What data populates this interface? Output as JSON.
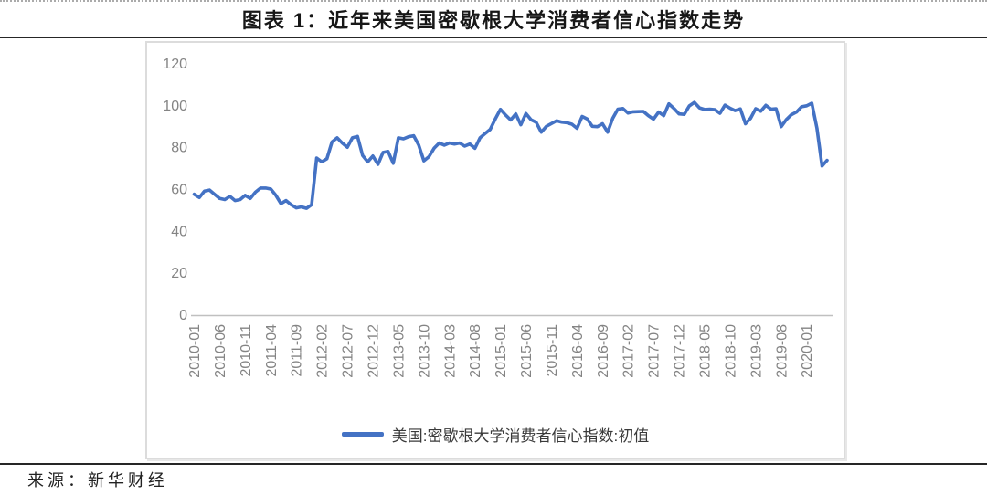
{
  "page": {
    "title": "图表 1：近年来美国密歇根大学消费者信心指数走势",
    "source_label": "来源：新华财经"
  },
  "chart_data": {
    "type": "line",
    "title": "图表 1：近年来美国密歇根大学消费者信心指数走势",
    "xlabel": "",
    "ylabel": "",
    "ylim": [
      0,
      120
    ],
    "yticks": [
      0,
      20,
      40,
      60,
      80,
      100,
      120
    ],
    "x_tick_every": 5,
    "grid": false,
    "legend_position": "bottom",
    "axis_color": "#c0c0c0",
    "label_color": "#848484",
    "x": [
      "2010-01",
      "2010-02",
      "2010-03",
      "2010-04",
      "2010-05",
      "2010-06",
      "2010-07",
      "2010-08",
      "2010-09",
      "2010-10",
      "2010-11",
      "2010-12",
      "2011-01",
      "2011-02",
      "2011-03",
      "2011-04",
      "2011-05",
      "2011-06",
      "2011-07",
      "2011-08",
      "2011-09",
      "2011-10",
      "2011-11",
      "2011-12",
      "2012-01",
      "2012-02",
      "2012-03",
      "2012-04",
      "2012-05",
      "2012-06",
      "2012-07",
      "2012-08",
      "2012-09",
      "2012-10",
      "2012-11",
      "2012-12",
      "2013-01",
      "2013-02",
      "2013-03",
      "2013-04",
      "2013-05",
      "2013-06",
      "2013-07",
      "2013-08",
      "2013-09",
      "2013-10",
      "2013-11",
      "2013-12",
      "2014-01",
      "2014-02",
      "2014-03",
      "2014-04",
      "2014-05",
      "2014-06",
      "2014-07",
      "2014-08",
      "2014-09",
      "2014-10",
      "2014-11",
      "2014-12",
      "2015-01",
      "2015-02",
      "2015-03",
      "2015-04",
      "2015-05",
      "2015-06",
      "2015-07",
      "2015-08",
      "2015-09",
      "2015-10",
      "2015-11",
      "2015-12",
      "2016-01",
      "2016-02",
      "2016-03",
      "2016-04",
      "2016-05",
      "2016-06",
      "2016-07",
      "2016-08",
      "2016-09",
      "2016-10",
      "2016-11",
      "2016-12",
      "2017-01",
      "2017-02",
      "2017-03",
      "2017-04",
      "2017-05",
      "2017-06",
      "2017-07",
      "2017-08",
      "2017-09",
      "2017-10",
      "2017-11",
      "2017-12",
      "2018-01",
      "2018-02",
      "2018-03",
      "2018-04",
      "2018-05",
      "2018-06",
      "2018-07",
      "2018-08",
      "2018-09",
      "2018-10",
      "2018-11",
      "2018-12",
      "2019-01",
      "2019-02",
      "2019-03",
      "2019-04",
      "2019-05",
      "2019-06",
      "2019-07",
      "2019-08",
      "2019-09",
      "2019-10",
      "2019-11",
      "2019-12",
      "2020-01",
      "2020-02",
      "2020-03",
      "2020-04",
      "2020-05"
    ],
    "series": [
      {
        "name": "美国:密歇根大学消费者信心指数:初值",
        "color": "#4472C4",
        "values": [
          57.5,
          56.0,
          59.0,
          59.5,
          57.5,
          55.5,
          55.0,
          56.5,
          54.5,
          55.0,
          57.0,
          55.5,
          58.5,
          60.5,
          60.5,
          60.0,
          57.0,
          53.0,
          54.5,
          52.5,
          51.0,
          51.5,
          50.8,
          52.5,
          74.8,
          73.0,
          74.5,
          82.5,
          84.5,
          82.0,
          80.0,
          84.5,
          85.2,
          76.0,
          73.0,
          75.8,
          71.8,
          77.5,
          78.0,
          72.3,
          84.5,
          84.0,
          85.0,
          85.5,
          81.0,
          73.5,
          75.5,
          79.5,
          82.0,
          81.0,
          82.0,
          81.5,
          82.0,
          80.5,
          81.5,
          79.5,
          84.5,
          86.5,
          88.5,
          93.5,
          98.1,
          95.4,
          93.0,
          95.9,
          90.7,
          96.1,
          93.1,
          91.9,
          87.2,
          90.0,
          91.3,
          92.6,
          92.0,
          91.7,
          91.0,
          89.0,
          94.7,
          93.5,
          90.0,
          89.8,
          91.2,
          87.2,
          93.8,
          98.2,
          98.5,
          96.3,
          96.9,
          97.0,
          97.1,
          95.0,
          93.4,
          96.8,
          95.1,
          100.7,
          98.5,
          95.9,
          95.7,
          99.7,
          101.4,
          98.8,
          98.0,
          98.2,
          97.9,
          96.2,
          100.1,
          98.6,
          97.5,
          98.3,
          91.2,
          93.8,
          98.4,
          97.2,
          100.0,
          98.2,
          98.4,
          89.8,
          93.2,
          95.5,
          96.8,
          99.3,
          99.8,
          101.0,
          89.1,
          71.0,
          73.7
        ]
      }
    ]
  }
}
